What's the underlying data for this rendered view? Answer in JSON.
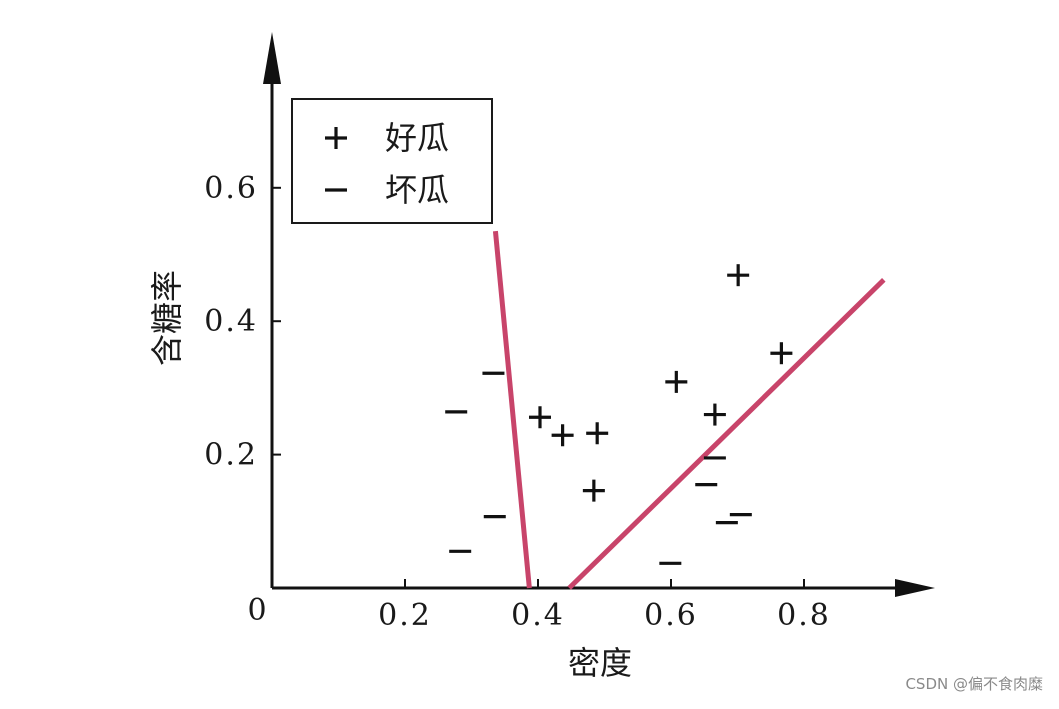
{
  "chart_data": {
    "type": "scatter",
    "xlabel": "密度",
    "ylabel": "含糖率",
    "origin_label": "0",
    "xlim": [
      0,
      0.97
    ],
    "ylim": [
      0,
      0.74
    ],
    "x_ticks": [
      {
        "value": 0.2,
        "label": "0.2"
      },
      {
        "value": 0.4,
        "label": "0.4"
      },
      {
        "value": 0.6,
        "label": "0.6"
      },
      {
        "value": 0.8,
        "label": "0.8"
      }
    ],
    "y_ticks": [
      {
        "value": 0.2,
        "label": "0.2"
      },
      {
        "value": 0.4,
        "label": "0.4"
      },
      {
        "value": 0.6,
        "label": "0.6"
      }
    ],
    "grid": false,
    "legend": {
      "position": "top-left",
      "entries": [
        {
          "marker": "+",
          "label": "好瓜"
        },
        {
          "marker": "−",
          "label": "坏瓜"
        }
      ]
    },
    "series": [
      {
        "name": "好瓜",
        "marker": "plus",
        "points": [
          [
            0.403,
            0.256
          ],
          [
            0.437,
            0.229
          ],
          [
            0.489,
            0.232
          ],
          [
            0.484,
            0.146
          ],
          [
            0.608,
            0.309
          ],
          [
            0.666,
            0.26
          ],
          [
            0.701,
            0.469
          ],
          [
            0.766,
            0.352
          ]
        ]
      },
      {
        "name": "坏瓜",
        "marker": "minus",
        "points": [
          [
            0.277,
            0.264
          ],
          [
            0.333,
            0.322
          ],
          [
            0.283,
            0.055
          ],
          [
            0.335,
            0.107
          ],
          [
            0.599,
            0.037
          ],
          [
            0.666,
            0.195
          ],
          [
            0.653,
            0.155
          ],
          [
            0.684,
            0.098
          ],
          [
            0.705,
            0.11
          ]
        ]
      }
    ],
    "boundary_lines": [
      {
        "color": "#c8446a",
        "from": [
          0.336,
          0.535
        ],
        "to": [
          0.387,
          0.0
        ]
      },
      {
        "color": "#c8446a",
        "from": [
          0.447,
          0.0
        ],
        "to": [
          0.92,
          0.462
        ]
      }
    ],
    "colors": {
      "axis": "#111111",
      "boundary": "#c8446a",
      "marker": "#111111"
    }
  },
  "watermark": "CSDN @偏不食肉糜"
}
